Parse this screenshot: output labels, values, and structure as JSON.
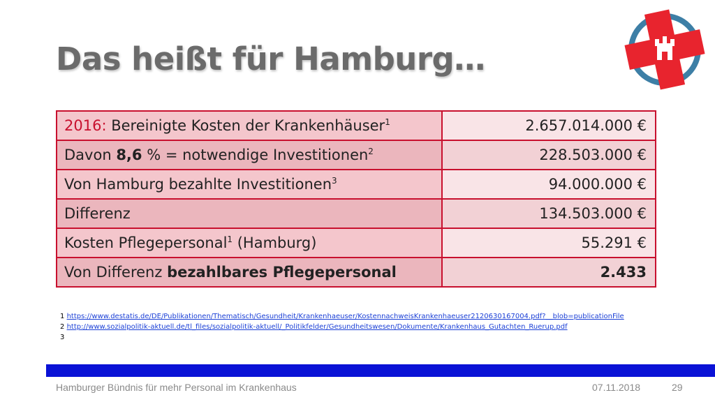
{
  "title": "Das heißt für Hamburg…",
  "table": {
    "rows": [
      {
        "label_prefix": "2016:",
        "label_main": " Bereinigte Kosten der Krankenhäuser",
        "sup": "1",
        "value": "2.657.014.000 €"
      },
      {
        "label_prefix": "Davon ",
        "label_bold": "8,6",
        "label_main": " % = notwendige Investitionen",
        "sup": "2",
        "value": "228.503.000 €"
      },
      {
        "label_main": "Von Hamburg bezahlte Investitionen",
        "sup": "3",
        "value": "94.000.000 €"
      },
      {
        "label_main": "Differenz",
        "value": "134.503.000 €"
      },
      {
        "label_main": "Kosten Pflegepersonal",
        "sup": "1",
        "label_suffix": " (Hamburg)",
        "value": "55.291 €"
      },
      {
        "label_main": "Von Differenz ",
        "label_bold": "bezahlbares Pflegepersonal",
        "value": "2.433"
      }
    ]
  },
  "footnotes": [
    {
      "num": "1",
      "url": "https://www.destatis.de/DE/Publikationen/Thematisch/Gesundheit/Krankenhaeuser/KostennachweisKrankenhaeuser2120630167004.pdf?__blob=publicationFile"
    },
    {
      "num": "2",
      "url": "http://www.sozialpolitik-aktuell.de/tl_files/sozialpolitik-aktuell/_Politikfelder/Gesundheitswesen/Dokumente/Krankenhaus_Gutachten_Ruerup.pdf"
    },
    {
      "num": "3"
    }
  ],
  "footer": {
    "left": "Hamburger Bündnis für mehr Personal im Krankenhaus",
    "date": "07.11.2018",
    "page": "29"
  },
  "colors": {
    "accent_red": "#c8102e",
    "footer_bar": "#0a12d6",
    "logo_ring": "#3d7fa6"
  }
}
